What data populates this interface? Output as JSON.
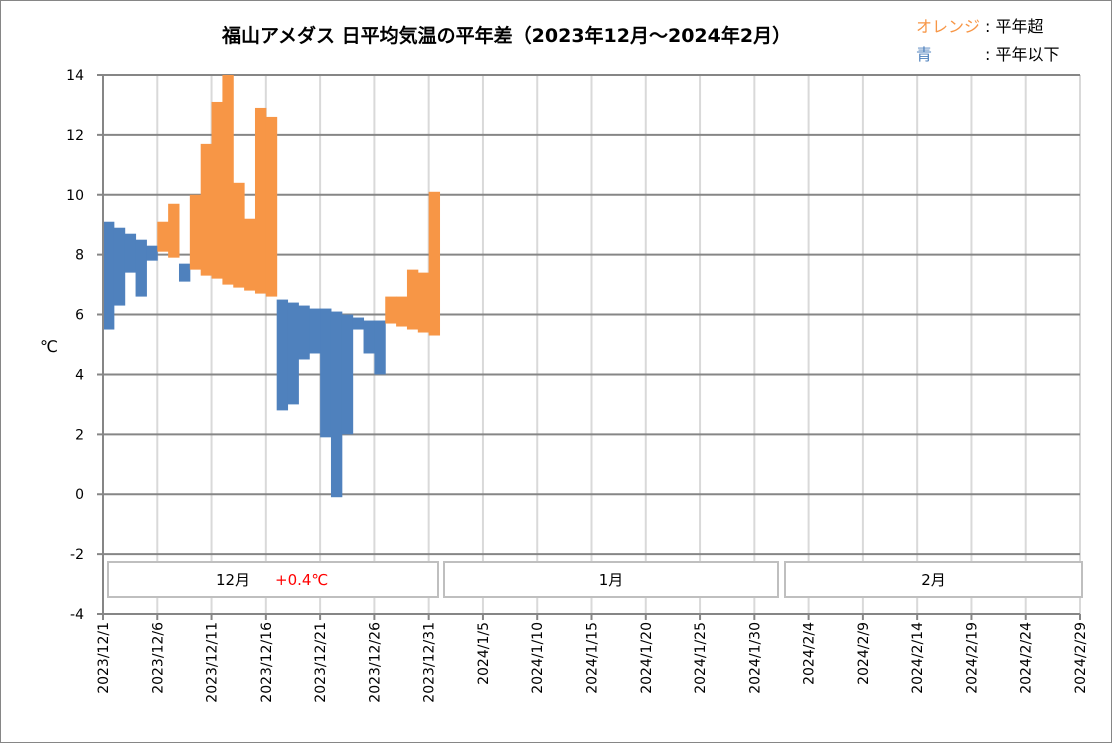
{
  "chart_data": {
    "type": "bar",
    "subtype": "floating-range",
    "title": "福山アメダス 日平均気温の平年差（2023年12月～2024年2月）",
    "ylabel": "℃",
    "ylim": [
      -4,
      14
    ],
    "yticks": [
      -4,
      -2,
      0,
      2,
      4,
      6,
      8,
      10,
      12,
      14
    ],
    "grid": true,
    "legend": {
      "placement": "top-right",
      "orange_label": "オレンジ",
      "orange_desc": ": 平年超",
      "blue_label": "青",
      "blue_desc": ": 平年以下"
    },
    "x_start": "2023/12/1",
    "num_days": 91,
    "xtick_labels": [
      "2023/12/1",
      "2023/12/6",
      "2023/12/11",
      "2023/12/16",
      "2023/12/21",
      "2023/12/26",
      "2023/12/31",
      "2024/1/5",
      "2024/1/10",
      "2024/1/15",
      "2024/1/20",
      "2024/1/25",
      "2024/1/30",
      "2024/2/4",
      "2024/2/9",
      "2024/2/14",
      "2024/2/19",
      "2024/2/24",
      "2024/2/29"
    ],
    "normal": [
      9.1,
      8.9,
      8.7,
      8.5,
      8.3,
      8.1,
      7.9,
      7.7,
      7.5,
      7.3,
      7.2,
      7.0,
      6.9,
      6.8,
      6.7,
      6.6,
      6.5,
      6.4,
      6.3,
      6.2,
      6.2,
      6.1,
      6.0,
      5.9,
      5.8,
      5.8,
      5.7,
      5.6,
      5.5,
      5.4,
      5.3
    ],
    "actual": [
      5.5,
      6.3,
      7.4,
      6.6,
      7.8,
      9.1,
      9.7,
      7.1,
      10.0,
      11.7,
      13.1,
      14.0,
      10.4,
      9.2,
      12.9,
      12.6,
      2.8,
      3.0,
      4.5,
      4.7,
      1.9,
      -0.1,
      2.0,
      5.5,
      4.7,
      4.0,
      6.6,
      6.6,
      7.5,
      7.4,
      10.1
    ],
    "colors": {
      "above": "#F79646",
      "below": "#4F81BD"
    },
    "months": [
      {
        "label": "12月",
        "diff": "+0.4℃"
      },
      {
        "label": "1月",
        "diff": ""
      },
      {
        "label": "2月",
        "diff": ""
      }
    ]
  }
}
